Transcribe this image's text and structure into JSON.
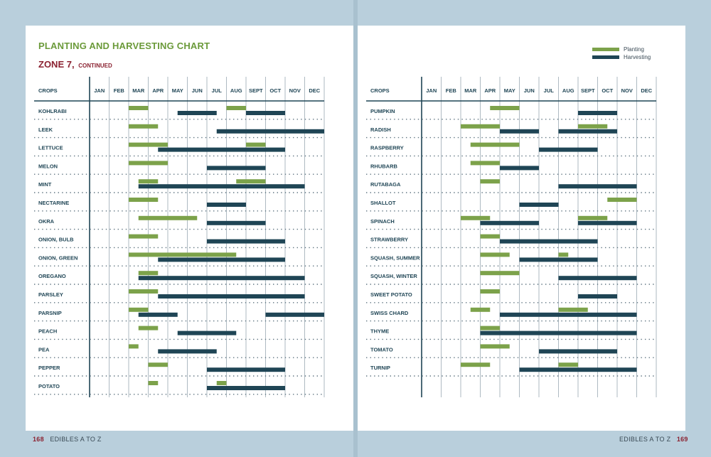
{
  "title": "PLANTING AND HARVESTING CHART",
  "zone": {
    "main": "ZONE 7,",
    "sub": "CONTINUED"
  },
  "legend": {
    "planting": "Planting",
    "harvesting": "Harvesting",
    "planting_color": "#7ca24a",
    "harvesting_color": "#1f4555"
  },
  "footer": {
    "left_num": "168",
    "left_text": "EDIBLES A TO Z",
    "right_text": "EDIBLES A TO Z",
    "right_num": "169"
  },
  "chart_data": [
    {
      "type": "table",
      "crops_header": "CROPS",
      "months": [
        "JAN",
        "FEB",
        "MAR",
        "APR",
        "MAY",
        "JUN",
        "JUL",
        "AUG",
        "SEPT",
        "OCT",
        "NOV",
        "DEC"
      ],
      "rows": [
        {
          "crop": "KOHLRABI",
          "planting": [
            [
              3,
              4
            ],
            [
              8,
              9
            ]
          ],
          "harvesting": [
            [
              5.5,
              7.5
            ],
            [
              9,
              11
            ]
          ]
        },
        {
          "crop": "LEEK",
          "planting": [
            [
              3,
              4.5
            ]
          ],
          "harvesting": [
            [
              7.5,
              13
            ]
          ]
        },
        {
          "crop": "LETTUCE",
          "planting": [
            [
              3,
              5
            ],
            [
              9,
              10
            ]
          ],
          "harvesting": [
            [
              4.5,
              11
            ]
          ]
        },
        {
          "crop": "MELON",
          "planting": [
            [
              3,
              5
            ]
          ],
          "harvesting": [
            [
              7,
              10
            ]
          ]
        },
        {
          "crop": "MINT",
          "planting": [
            [
              3.5,
              4.5
            ],
            [
              8.5,
              10
            ]
          ],
          "harvesting": [
            [
              3.5,
              12
            ]
          ]
        },
        {
          "crop": "NECTARINE",
          "planting": [
            [
              3,
              4.5
            ]
          ],
          "harvesting": [
            [
              7,
              9
            ]
          ]
        },
        {
          "crop": "OKRA",
          "planting": [
            [
              3.5,
              6.5
            ]
          ],
          "harvesting": [
            [
              7,
              10
            ]
          ]
        },
        {
          "crop": "ONION, BULB",
          "planting": [
            [
              3,
              4.5
            ]
          ],
          "harvesting": [
            [
              7,
              11
            ]
          ]
        },
        {
          "crop": "ONION, GREEN",
          "planting": [
            [
              3,
              8.5
            ]
          ],
          "harvesting": [
            [
              4.5,
              11
            ]
          ]
        },
        {
          "crop": "OREGANO",
          "planting": [
            [
              3.5,
              4.5
            ]
          ],
          "harvesting": [
            [
              3.5,
              12
            ]
          ]
        },
        {
          "crop": "PARSLEY",
          "planting": [
            [
              3,
              4.5
            ]
          ],
          "harvesting": [
            [
              4.5,
              12
            ]
          ]
        },
        {
          "crop": "PARSNIP",
          "planting": [
            [
              3,
              4
            ]
          ],
          "harvesting": [
            [
              3.5,
              5.5
            ],
            [
              10,
              13
            ]
          ]
        },
        {
          "crop": "PEACH",
          "planting": [
            [
              3.5,
              4.5
            ]
          ],
          "harvesting": [
            [
              5.5,
              8.5
            ]
          ]
        },
        {
          "crop": "PEA",
          "planting": [
            [
              3,
              3.5
            ]
          ],
          "harvesting": [
            [
              4.5,
              7.5
            ]
          ]
        },
        {
          "crop": "PEPPER",
          "planting": [
            [
              4,
              5
            ]
          ],
          "harvesting": [
            [
              7,
              11
            ]
          ]
        },
        {
          "crop": "POTATO",
          "planting": [
            [
              4,
              4.5
            ],
            [
              7.5,
              8
            ]
          ],
          "harvesting": [
            [
              7,
              11
            ]
          ]
        }
      ]
    },
    {
      "type": "table",
      "crops_header": "CROPS",
      "months": [
        "JAN",
        "FEB",
        "MAR",
        "APR",
        "MAY",
        "JUN",
        "JUL",
        "AUG",
        "SEPT",
        "OCT",
        "NOV",
        "DEC"
      ],
      "rows": [
        {
          "crop": "PUMPKIN",
          "planting": [
            [
              4.5,
              6
            ]
          ],
          "harvesting": [
            [
              9,
              11
            ]
          ]
        },
        {
          "crop": "RADISH",
          "planting": [
            [
              3,
              5
            ],
            [
              9,
              10.5
            ]
          ],
          "harvesting": [
            [
              5,
              7
            ],
            [
              8,
              11
            ]
          ]
        },
        {
          "crop": "RASPBERRY",
          "planting": [
            [
              3.5,
              6
            ]
          ],
          "harvesting": [
            [
              7,
              10
            ]
          ]
        },
        {
          "crop": "RHUBARB",
          "planting": [
            [
              3.5,
              5
            ]
          ],
          "harvesting": [
            [
              5,
              7
            ]
          ]
        },
        {
          "crop": "RUTABAGA",
          "planting": [
            [
              4,
              5
            ]
          ],
          "harvesting": [
            [
              8,
              12
            ]
          ]
        },
        {
          "crop": "SHALLOT",
          "planting": [
            [
              10.5,
              12
            ]
          ],
          "harvesting": [
            [
              6,
              8
            ]
          ]
        },
        {
          "crop": "SPINACH",
          "planting": [
            [
              3,
              4.5
            ],
            [
              9,
              10.5
            ]
          ],
          "harvesting": [
            [
              4,
              7
            ],
            [
              9,
              12
            ]
          ]
        },
        {
          "crop": "STRAWBERRY",
          "planting": [
            [
              4,
              5
            ]
          ],
          "harvesting": [
            [
              5,
              10
            ]
          ]
        },
        {
          "crop": "SQUASH, SUMMER",
          "planting": [
            [
              4,
              5.5
            ],
            [
              8,
              8.5
            ]
          ],
          "harvesting": [
            [
              6,
              10
            ]
          ]
        },
        {
          "crop": "SQUASH, WINTER",
          "planting": [
            [
              4,
              6
            ]
          ],
          "harvesting": [
            [
              8,
              12
            ]
          ]
        },
        {
          "crop": "SWEET POTATO",
          "planting": [
            [
              4,
              5
            ]
          ],
          "harvesting": [
            [
              9,
              11
            ]
          ]
        },
        {
          "crop": "SWISS CHARD",
          "planting": [
            [
              3.5,
              4.5
            ],
            [
              8,
              9.5
            ]
          ],
          "harvesting": [
            [
              5,
              12
            ]
          ]
        },
        {
          "crop": "THYME",
          "planting": [
            [
              4,
              5
            ]
          ],
          "harvesting": [
            [
              4,
              12
            ]
          ]
        },
        {
          "crop": "TOMATO",
          "planting": [
            [
              4,
              5.5
            ]
          ],
          "harvesting": [
            [
              7,
              11
            ]
          ]
        },
        {
          "crop": "TURNIP",
          "planting": [
            [
              3,
              4.5
            ],
            [
              8,
              9
            ]
          ],
          "harvesting": [
            [
              6,
              12
            ]
          ]
        }
      ]
    }
  ]
}
